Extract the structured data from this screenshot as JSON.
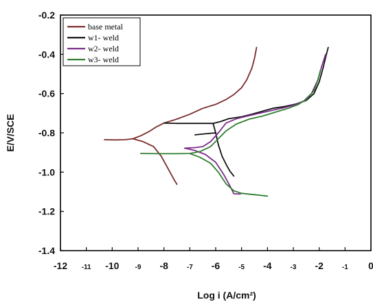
{
  "chart_data": {
    "type": "line",
    "xlabel": "Log i (A/cm²)",
    "ylabel": "E/V/SCE",
    "xlim": [
      -12,
      0
    ],
    "ylim": [
      -1.4,
      -0.2
    ],
    "x_ticks": [
      "-12",
      "-11",
      "-10",
      "-9",
      "-8",
      "-7",
      "-6",
      "-5",
      "-4",
      "-3",
      "-2",
      "-1",
      "0"
    ],
    "y_ticks": [
      "-0.2",
      "-0.4",
      "-0.6",
      "-0.8",
      "-1.0",
      "-1.2",
      "-1.4"
    ],
    "grid": false,
    "legend_position": "top-left",
    "series": [
      {
        "name": "base metal",
        "color": "#7a2a2a",
        "segments": [
          [
            [
              -10.3,
              -0.835
            ],
            [
              -9.9,
              -0.836
            ],
            [
              -9.5,
              -0.835
            ],
            [
              -9.2,
              -0.83
            ],
            [
              -8.9,
              -0.815
            ],
            [
              -8.6,
              -0.795
            ],
            [
              -8.3,
              -0.77
            ],
            [
              -8.0,
              -0.75
            ],
            [
              -7.5,
              -0.73
            ],
            [
              -7.0,
              -0.705
            ],
            [
              -6.5,
              -0.675
            ],
            [
              -6.0,
              -0.655
            ],
            [
              -5.6,
              -0.63
            ],
            [
              -5.3,
              -0.605
            ],
            [
              -5.0,
              -0.57
            ],
            [
              -4.8,
              -0.53
            ],
            [
              -4.6,
              -0.47
            ],
            [
              -4.5,
              -0.42
            ],
            [
              -4.42,
              -0.365
            ]
          ],
          [
            [
              -9.2,
              -0.83
            ],
            [
              -8.8,
              -0.845
            ],
            [
              -8.4,
              -0.87
            ],
            [
              -8.1,
              -0.92
            ],
            [
              -7.85,
              -0.98
            ],
            [
              -7.6,
              -1.04
            ],
            [
              -7.5,
              -1.062
            ]
          ]
        ]
      },
      {
        "name": "w1- weld",
        "color": "#111111",
        "segments": [
          [
            [
              -8.0,
              -0.75
            ],
            [
              -7.5,
              -0.752
            ],
            [
              -7.0,
              -0.752
            ],
            [
              -6.5,
              -0.752
            ],
            [
              -6.1,
              -0.752
            ],
            [
              -5.8,
              -0.742
            ],
            [
              -5.5,
              -0.728
            ],
            [
              -5.0,
              -0.718
            ],
            [
              -4.6,
              -0.705
            ],
            [
              -4.2,
              -0.69
            ],
            [
              -3.8,
              -0.675
            ],
            [
              -3.3,
              -0.665
            ],
            [
              -2.9,
              -0.653
            ],
            [
              -2.5,
              -0.635
            ],
            [
              -2.2,
              -0.6
            ],
            [
              -2.0,
              -0.54
            ],
            [
              -1.85,
              -0.47
            ],
            [
              -1.75,
              -0.415
            ],
            [
              -1.65,
              -0.365
            ]
          ],
          [
            [
              -6.1,
              -0.752
            ],
            [
              -6.0,
              -0.8
            ],
            [
              -5.9,
              -0.86
            ],
            [
              -5.75,
              -0.92
            ],
            [
              -5.6,
              -0.96
            ],
            [
              -5.45,
              -0.995
            ],
            [
              -5.3,
              -1.02
            ]
          ],
          [
            [
              -6.8,
              -0.81
            ],
            [
              -6.4,
              -0.805
            ],
            [
              -6.0,
              -0.8
            ]
          ]
        ]
      },
      {
        "name": "w2- weld",
        "color": "#7a2a8a",
        "segments": [
          [
            [
              -7.2,
              -0.878
            ],
            [
              -6.8,
              -0.875
            ],
            [
              -6.5,
              -0.87
            ],
            [
              -6.2,
              -0.845
            ],
            [
              -5.9,
              -0.8
            ],
            [
              -5.6,
              -0.75
            ],
            [
              -5.2,
              -0.728
            ],
            [
              -4.8,
              -0.715
            ],
            [
              -4.3,
              -0.7
            ],
            [
              -3.8,
              -0.685
            ],
            [
              -3.3,
              -0.67
            ],
            [
              -2.9,
              -0.655
            ],
            [
              -2.6,
              -0.638
            ],
            [
              -2.3,
              -0.6
            ],
            [
              -2.05,
              -0.53
            ],
            [
              -1.9,
              -0.46
            ],
            [
              -1.75,
              -0.4
            ]
          ],
          [
            [
              -7.2,
              -0.878
            ],
            [
              -6.8,
              -0.89
            ],
            [
              -6.4,
              -0.91
            ],
            [
              -6.0,
              -0.95
            ],
            [
              -5.7,
              -1.01
            ],
            [
              -5.45,
              -1.07
            ],
            [
              -5.3,
              -1.11
            ],
            [
              -5.05,
              -1.112
            ]
          ]
        ]
      },
      {
        "name": "w3- weld",
        "color": "#2e7d2e",
        "segments": [
          [
            [
              -8.9,
              -0.905
            ],
            [
              -8.2,
              -0.906
            ],
            [
              -7.5,
              -0.906
            ],
            [
              -7.0,
              -0.905
            ],
            [
              -6.6,
              -0.895
            ],
            [
              -6.2,
              -0.87
            ],
            [
              -5.9,
              -0.83
            ],
            [
              -5.6,
              -0.79
            ],
            [
              -5.2,
              -0.755
            ],
            [
              -4.7,
              -0.73
            ],
            [
              -4.2,
              -0.715
            ],
            [
              -3.7,
              -0.695
            ],
            [
              -3.2,
              -0.675
            ],
            [
              -2.8,
              -0.655
            ],
            [
              -2.5,
              -0.63
            ],
            [
              -2.2,
              -0.585
            ],
            [
              -2.05,
              -0.53
            ],
            [
              -1.95,
              -0.48
            ]
          ],
          [
            [
              -7.0,
              -0.905
            ],
            [
              -6.6,
              -0.925
            ],
            [
              -6.2,
              -0.955
            ],
            [
              -5.9,
              -1.0
            ],
            [
              -5.6,
              -1.06
            ],
            [
              -5.3,
              -1.095
            ],
            [
              -5.0,
              -1.108
            ],
            [
              -4.5,
              -1.115
            ],
            [
              -4.0,
              -1.122
            ]
          ]
        ]
      }
    ]
  }
}
